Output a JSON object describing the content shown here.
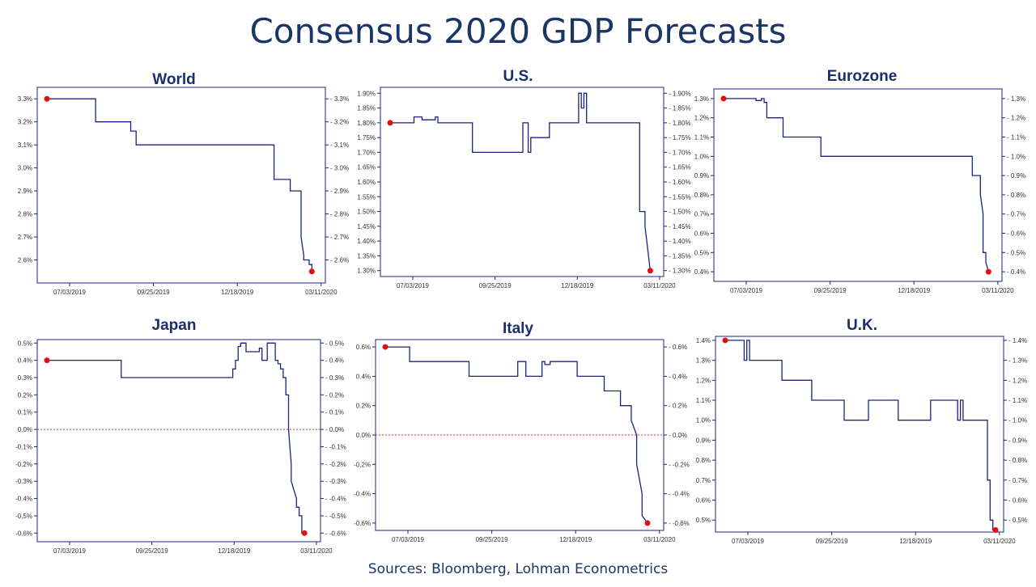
{
  "title": "Consensus 2020 GDP Forecasts",
  "sources": "Sources: Bloomberg, Lohman Econometrics",
  "colors": {
    "line": "#1a237e",
    "marker": "#e01010",
    "zero_line": "#e03030",
    "frame": "#1a237e",
    "title": "#1a3566"
  },
  "chart_data": [
    {
      "type": "line",
      "title": "World",
      "x_ticks": [
        "07/03/2019",
        "09/25/2019",
        "12/18/2019",
        "03/11/2020"
      ],
      "ylim": [
        2.5,
        3.35
      ],
      "y_ticks": [
        2.6,
        2.7,
        2.8,
        2.9,
        3.0,
        3.1,
        3.2,
        3.3
      ],
      "y_tick_labels": [
        "2.6%",
        "2.7%",
        "2.8%",
        "2.9%",
        "3.0%",
        "3.1%",
        "3.2%",
        "3.3%"
      ],
      "zero_line": false,
      "series": [
        {
          "x": [
            0,
            0.18,
            0.18,
            0.31,
            0.31,
            0.33,
            0.33,
            0.84,
            0.84,
            0.9,
            0.9,
            0.94,
            0.94,
            0.95,
            0.95,
            0.97,
            0.97,
            0.98,
            0.98
          ],
          "y": [
            3.3,
            3.3,
            3.2,
            3.2,
            3.16,
            3.16,
            3.1,
            3.1,
            2.95,
            2.95,
            2.9,
            2.9,
            2.7,
            2.62,
            2.6,
            2.6,
            2.58,
            2.58,
            2.55
          ]
        }
      ],
      "markers": [
        {
          "x": 0,
          "y": 3.3
        },
        {
          "x": 0.98,
          "y": 2.55
        }
      ]
    },
    {
      "type": "line",
      "title": "U.S.",
      "x_ticks": [
        "07/03/2019",
        "09/25/2019",
        "12/18/2019",
        "03/11/2020"
      ],
      "ylim": [
        1.28,
        1.92
      ],
      "y_ticks": [
        1.3,
        1.35,
        1.4,
        1.45,
        1.5,
        1.55,
        1.6,
        1.65,
        1.7,
        1.75,
        1.8,
        1.85,
        1.9
      ],
      "y_tick_labels": [
        "1.30%",
        "1.35%",
        "1.40%",
        "1.45%",
        "1.50%",
        "1.55%",
        "1.60%",
        "1.65%",
        "1.70%",
        "1.75%",
        "1.80%",
        "1.85%",
        "1.90%"
      ],
      "zero_line": false,
      "series": [
        {
          "x": [
            0,
            0.09,
            0.09,
            0.12,
            0.12,
            0.17,
            0.17,
            0.18,
            0.18,
            0.19,
            0.19,
            0.31,
            0.31,
            0.5,
            0.5,
            0.52,
            0.52,
            0.53,
            0.53,
            0.54,
            0.54,
            0.6,
            0.6,
            0.71,
            0.71,
            0.72,
            0.72,
            0.73,
            0.73,
            0.74,
            0.74,
            0.94,
            0.94,
            0.96,
            0.96,
            0.98
          ],
          "y": [
            1.8,
            1.8,
            1.82,
            1.82,
            1.81,
            1.81,
            1.82,
            1.82,
            1.8,
            1.8,
            1.8,
            1.8,
            1.7,
            1.7,
            1.8,
            1.8,
            1.7,
            1.7,
            1.75,
            1.75,
            1.75,
            1.75,
            1.8,
            1.8,
            1.9,
            1.9,
            1.85,
            1.85,
            1.9,
            1.9,
            1.8,
            1.8,
            1.5,
            1.5,
            1.45,
            1.3
          ]
        }
      ],
      "markers": [
        {
          "x": 0,
          "y": 1.8
        },
        {
          "x": 0.98,
          "y": 1.3
        }
      ]
    },
    {
      "type": "line",
      "title": "Eurozone",
      "x_ticks": [
        "07/03/2019",
        "09/25/2019",
        "12/18/2019",
        "03/11/2020"
      ],
      "ylim": [
        0.35,
        1.35
      ],
      "y_ticks": [
        0.4,
        0.5,
        0.6,
        0.7,
        0.8,
        0.9,
        1.0,
        1.1,
        1.2,
        1.3
      ],
      "y_tick_labels": [
        "0.4%",
        "0.5%",
        "0.6%",
        "0.7%",
        "0.8%",
        "0.9%",
        "1.0%",
        "1.1%",
        "1.2%",
        "1.3%"
      ],
      "zero_line": false,
      "series": [
        {
          "x": [
            0,
            0.12,
            0.12,
            0.14,
            0.14,
            0.15,
            0.15,
            0.16,
            0.16,
            0.22,
            0.22,
            0.36,
            0.36,
            0.92,
            0.92,
            0.95,
            0.95,
            0.96,
            0.96,
            0.97,
            0.97,
            0.98
          ],
          "y": [
            1.3,
            1.3,
            1.29,
            1.29,
            1.3,
            1.3,
            1.28,
            1.28,
            1.2,
            1.2,
            1.1,
            1.1,
            1.0,
            1.0,
            0.9,
            0.9,
            0.8,
            0.7,
            0.5,
            0.5,
            0.45,
            0.4
          ]
        }
      ],
      "markers": [
        {
          "x": 0,
          "y": 1.3
        },
        {
          "x": 0.98,
          "y": 0.4
        }
      ]
    },
    {
      "type": "line",
      "title": "Japan",
      "x_ticks": [
        "07/03/2019",
        "09/25/2019",
        "12/18/2019",
        "03/11/2020"
      ],
      "ylim": [
        -0.65,
        0.52
      ],
      "y_ticks": [
        -0.6,
        -0.5,
        -0.4,
        -0.3,
        -0.2,
        -0.1,
        0.0,
        0.1,
        0.2,
        0.3,
        0.4,
        0.5
      ],
      "y_tick_labels": [
        "-0.6%",
        "-0.5%",
        "-0.4%",
        "-0.3%",
        "-0.2%",
        "-0.1%",
        "0.0%",
        "0.1%",
        "0.2%",
        "0.3%",
        "0.4%",
        "0.5%"
      ],
      "zero_line": true,
      "series": [
        {
          "x": [
            0,
            0.28,
            0.28,
            0.7,
            0.7,
            0.71,
            0.71,
            0.72,
            0.72,
            0.73,
            0.73,
            0.75,
            0.75,
            0.8,
            0.8,
            0.81,
            0.81,
            0.83,
            0.83,
            0.86,
            0.86,
            0.87,
            0.87,
            0.88,
            0.88,
            0.89,
            0.89,
            0.9,
            0.9,
            0.91,
            0.91,
            0.92,
            0.92,
            0.94,
            0.94,
            0.95,
            0.95,
            0.96,
            0.96,
            0.97
          ],
          "y": [
            0.4,
            0.4,
            0.3,
            0.3,
            0.35,
            0.35,
            0.4,
            0.4,
            0.48,
            0.48,
            0.5,
            0.5,
            0.45,
            0.45,
            0.47,
            0.47,
            0.4,
            0.4,
            0.5,
            0.5,
            0.4,
            0.4,
            0.38,
            0.38,
            0.35,
            0.35,
            0.3,
            0.3,
            0.2,
            0.2,
            0.0,
            -0.2,
            -0.3,
            -0.4,
            -0.45,
            -0.45,
            -0.5,
            -0.5,
            -0.6,
            -0.6
          ]
        }
      ],
      "markers": [
        {
          "x": 0,
          "y": 0.4
        },
        {
          "x": 0.97,
          "y": -0.6
        }
      ]
    },
    {
      "type": "line",
      "title": "Italy",
      "x_ticks": [
        "07/03/2019",
        "09/25/2019",
        "12/18/2019",
        "03/11/2020"
      ],
      "ylim": [
        -0.65,
        0.65
      ],
      "y_ticks": [
        -0.6,
        -0.4,
        -0.2,
        0.0,
        0.2,
        0.4,
        0.6
      ],
      "y_tick_labels": [
        "-0.6%",
        "-0.4%",
        "-0.2%",
        "0.0%",
        "0.2%",
        "0.4%",
        "0.6%"
      ],
      "zero_line": true,
      "series": [
        {
          "x": [
            0,
            0.09,
            0.09,
            0.31,
            0.31,
            0.49,
            0.49,
            0.52,
            0.52,
            0.58,
            0.58,
            0.59,
            0.59,
            0.61,
            0.61,
            0.71,
            0.71,
            0.81,
            0.81,
            0.87,
            0.87,
            0.91,
            0.91,
            0.93,
            0.93,
            0.95,
            0.95,
            0.97
          ],
          "y": [
            0.6,
            0.6,
            0.5,
            0.5,
            0.4,
            0.4,
            0.5,
            0.5,
            0.4,
            0.4,
            0.5,
            0.5,
            0.48,
            0.48,
            0.5,
            0.5,
            0.4,
            0.4,
            0.3,
            0.3,
            0.2,
            0.2,
            0.1,
            0.0,
            -0.2,
            -0.4,
            -0.55,
            -0.6
          ]
        }
      ],
      "markers": [
        {
          "x": 0,
          "y": 0.6
        },
        {
          "x": 0.97,
          "y": -0.6
        }
      ]
    },
    {
      "type": "line",
      "title": "U.K.",
      "x_ticks": [
        "07/03/2019",
        "09/25/2019",
        "12/18/2019",
        "03/11/2020"
      ],
      "ylim": [
        0.44,
        1.42
      ],
      "y_ticks": [
        0.5,
        0.6,
        0.7,
        0.8,
        0.9,
        1.0,
        1.1,
        1.2,
        1.3,
        1.4
      ],
      "y_tick_labels": [
        "0.5%",
        "0.6%",
        "0.7%",
        "0.8%",
        "0.9%",
        "1.0%",
        "1.1%",
        "1.2%",
        "1.3%",
        "1.4%"
      ],
      "zero_line": false,
      "series": [
        {
          "x": [
            0,
            0.07,
            0.07,
            0.08,
            0.08,
            0.09,
            0.09,
            0.1,
            0.1,
            0.21,
            0.21,
            0.32,
            0.32,
            0.44,
            0.44,
            0.53,
            0.53,
            0.64,
            0.64,
            0.76,
            0.76,
            0.86,
            0.86,
            0.87,
            0.87,
            0.88,
            0.88,
            0.97,
            0.97,
            0.98,
            0.98,
            0.99,
            0.99,
            1.0
          ],
          "y": [
            1.4,
            1.4,
            1.3,
            1.3,
            1.4,
            1.4,
            1.3,
            1.3,
            1.3,
            1.3,
            1.2,
            1.2,
            1.1,
            1.1,
            1.0,
            1.0,
            1.1,
            1.1,
            1.0,
            1.0,
            1.1,
            1.1,
            1.0,
            1.0,
            1.1,
            1.1,
            1.0,
            1.0,
            0.7,
            0.7,
            0.5,
            0.5,
            0.45,
            0.45
          ]
        }
      ],
      "markers": [
        {
          "x": 0,
          "y": 1.4
        },
        {
          "x": 1.0,
          "y": 0.45
        }
      ]
    }
  ]
}
